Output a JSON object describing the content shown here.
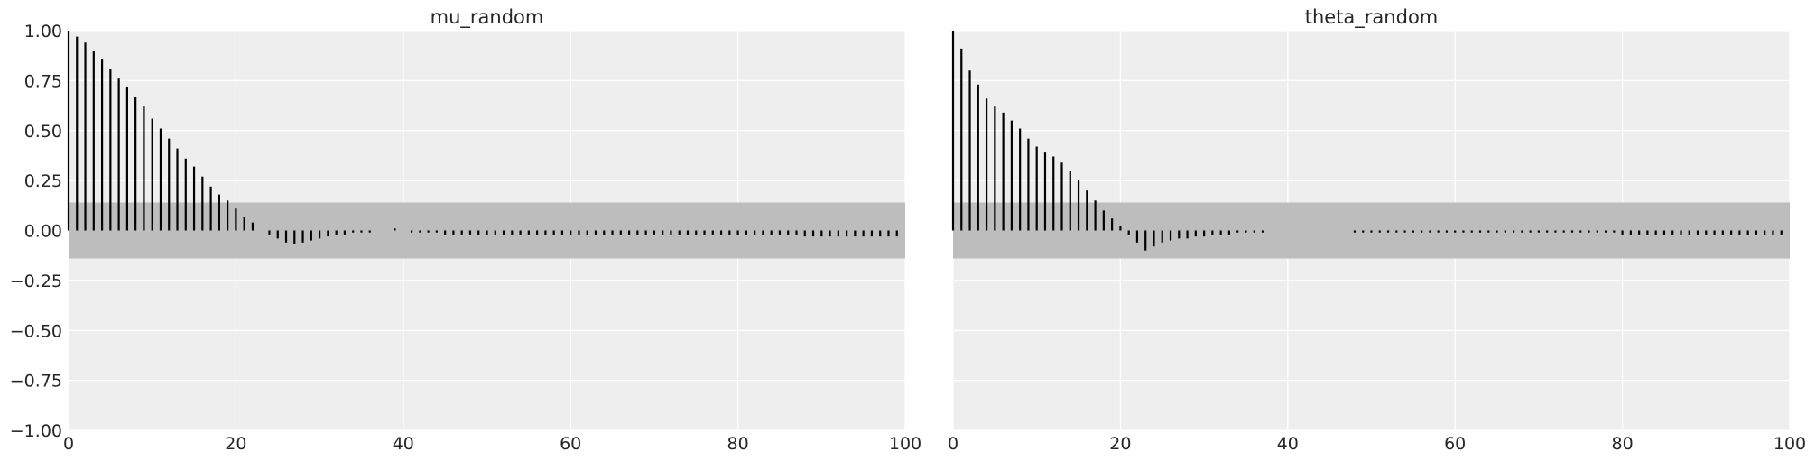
{
  "chart_data": [
    {
      "type": "bar",
      "subtype": "autocorrelation",
      "title": "mu_random",
      "xlabel": "",
      "ylabel": "",
      "xlim": [
        0,
        100
      ],
      "ylim": [
        -1.0,
        1.0
      ],
      "x_ticks": [
        "0",
        "20",
        "40",
        "60",
        "80",
        "100"
      ],
      "y_ticks": [
        "1.00",
        "0.75",
        "0.50",
        "0.25",
        "0.00",
        "−0.25",
        "−0.50",
        "−0.75",
        "−1.00"
      ],
      "grid": true,
      "confidence_band": [
        -0.14,
        0.14
      ],
      "x": [
        0,
        1,
        2,
        3,
        4,
        5,
        6,
        7,
        8,
        9,
        10,
        11,
        12,
        13,
        14,
        15,
        16,
        17,
        18,
        19,
        20,
        21,
        22,
        23,
        24,
        25,
        26,
        27,
        28,
        29,
        30,
        31,
        32,
        33,
        34,
        35,
        36,
        37,
        38,
        39,
        40,
        41,
        42,
        43,
        44,
        45,
        46,
        47,
        48,
        49,
        50,
        51,
        52,
        53,
        54,
        55,
        56,
        57,
        58,
        59,
        60,
        61,
        62,
        63,
        64,
        65,
        66,
        67,
        68,
        69,
        70,
        71,
        72,
        73,
        74,
        75,
        76,
        77,
        78,
        79,
        80,
        81,
        82,
        83,
        84,
        85,
        86,
        87,
        88,
        89,
        90,
        91,
        92,
        93,
        94,
        95,
        96,
        97,
        98,
        99
      ],
      "values": [
        1.0,
        0.97,
        0.94,
        0.9,
        0.86,
        0.81,
        0.76,
        0.72,
        0.67,
        0.62,
        0.56,
        0.51,
        0.46,
        0.41,
        0.36,
        0.32,
        0.27,
        0.22,
        0.18,
        0.15,
        0.11,
        0.07,
        0.04,
        0.0,
        -0.02,
        -0.04,
        -0.06,
        -0.07,
        -0.06,
        -0.05,
        -0.04,
        -0.03,
        -0.02,
        -0.02,
        -0.01,
        -0.01,
        -0.01,
        0.0,
        0.0,
        0.01,
        0.0,
        -0.01,
        -0.01,
        -0.01,
        -0.01,
        -0.02,
        -0.02,
        -0.02,
        -0.02,
        -0.02,
        -0.02,
        -0.02,
        -0.02,
        -0.02,
        -0.02,
        -0.02,
        -0.02,
        -0.02,
        -0.02,
        -0.02,
        -0.02,
        -0.02,
        -0.02,
        -0.02,
        -0.02,
        -0.02,
        -0.02,
        -0.02,
        -0.02,
        -0.02,
        -0.02,
        -0.02,
        -0.02,
        -0.02,
        -0.02,
        -0.02,
        -0.02,
        -0.02,
        -0.02,
        -0.02,
        -0.02,
        -0.02,
        -0.02,
        -0.02,
        -0.02,
        -0.02,
        -0.02,
        -0.02,
        -0.03,
        -0.03,
        -0.03,
        -0.03,
        -0.03,
        -0.03,
        -0.03,
        -0.03,
        -0.03,
        -0.03,
        -0.03,
        -0.03
      ]
    },
    {
      "type": "bar",
      "subtype": "autocorrelation",
      "title": "theta_random",
      "xlabel": "",
      "ylabel": "",
      "xlim": [
        0,
        100
      ],
      "ylim": [
        -1.0,
        1.0
      ],
      "x_ticks": [
        "0",
        "20",
        "40",
        "60",
        "80",
        "100"
      ],
      "y_ticks": [],
      "grid": true,
      "confidence_band": [
        -0.14,
        0.14
      ],
      "x": [
        0,
        1,
        2,
        3,
        4,
        5,
        6,
        7,
        8,
        9,
        10,
        11,
        12,
        13,
        14,
        15,
        16,
        17,
        18,
        19,
        20,
        21,
        22,
        23,
        24,
        25,
        26,
        27,
        28,
        29,
        30,
        31,
        32,
        33,
        34,
        35,
        36,
        37,
        38,
        39,
        40,
        41,
        42,
        43,
        44,
        45,
        46,
        47,
        48,
        49,
        50,
        51,
        52,
        53,
        54,
        55,
        56,
        57,
        58,
        59,
        60,
        61,
        62,
        63,
        64,
        65,
        66,
        67,
        68,
        69,
        70,
        71,
        72,
        73,
        74,
        75,
        76,
        77,
        78,
        79,
        80,
        81,
        82,
        83,
        84,
        85,
        86,
        87,
        88,
        89,
        90,
        91,
        92,
        93,
        94,
        95,
        96,
        97,
        98,
        99
      ],
      "values": [
        1.0,
        0.91,
        0.8,
        0.73,
        0.66,
        0.62,
        0.59,
        0.55,
        0.51,
        0.46,
        0.42,
        0.39,
        0.37,
        0.34,
        0.3,
        0.25,
        0.2,
        0.15,
        0.1,
        0.06,
        0.02,
        -0.02,
        -0.06,
        -0.1,
        -0.08,
        -0.06,
        -0.05,
        -0.04,
        -0.04,
        -0.03,
        -0.03,
        -0.02,
        -0.02,
        -0.02,
        -0.01,
        -0.01,
        -0.01,
        -0.01,
        0.0,
        0.0,
        0.0,
        0.0,
        0.0,
        0.0,
        0.0,
        0.0,
        0.0,
        0.0,
        -0.01,
        -0.01,
        -0.01,
        -0.01,
        -0.01,
        -0.01,
        -0.01,
        -0.01,
        -0.01,
        -0.01,
        -0.01,
        -0.01,
        -0.01,
        -0.01,
        -0.01,
        -0.01,
        -0.01,
        -0.01,
        -0.01,
        -0.01,
        -0.01,
        -0.01,
        -0.01,
        -0.01,
        -0.01,
        -0.01,
        -0.01,
        -0.01,
        -0.01,
        -0.01,
        -0.01,
        -0.01,
        -0.02,
        -0.02,
        -0.02,
        -0.02,
        -0.02,
        -0.02,
        -0.02,
        -0.02,
        -0.02,
        -0.02,
        -0.02,
        -0.02,
        -0.02,
        -0.02,
        -0.02,
        -0.02,
        -0.02,
        -0.02,
        -0.02,
        -0.02
      ]
    }
  ],
  "colors": {
    "axes_background": "#eeeeee",
    "grid": "#ffffff",
    "confidence_band": "#bdbdbd",
    "bars": "#000000",
    "text": "#262626"
  }
}
